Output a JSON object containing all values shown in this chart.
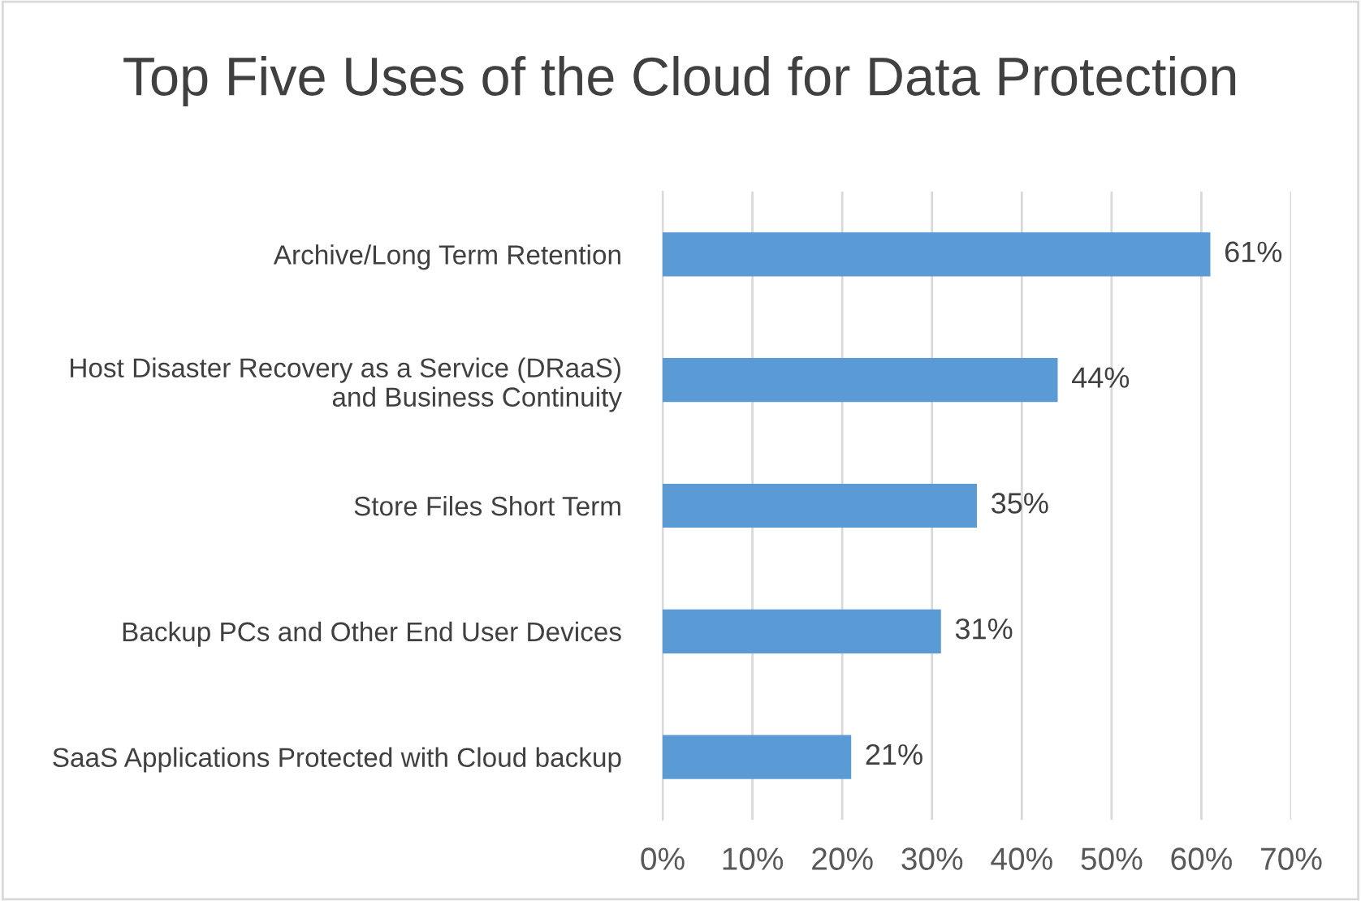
{
  "chart_data": {
    "type": "bar",
    "orientation": "horizontal",
    "title": "Top Five Uses of the Cloud for Data Protection",
    "categories": [
      "Archive/Long Term Retention",
      "Host Disaster Recovery as a Service (DRaaS)\nand Business Continuity",
      "Store Files Short Term",
      "Backup PCs and Other End User Devices",
      "SaaS Applications Protected with Cloud backup"
    ],
    "values": [
      61,
      44,
      35,
      31,
      21
    ],
    "value_labels": [
      "61%",
      "44%",
      "35%",
      "31%",
      "21%"
    ],
    "color": "#5b9bd5",
    "xlim": [
      0,
      70
    ],
    "xticks": [
      {
        "value": 0,
        "label": "0%"
      },
      {
        "value": 10,
        "label": "10%"
      },
      {
        "value": 20,
        "label": "20%"
      },
      {
        "value": 30,
        "label": "30%"
      },
      {
        "value": 40,
        "label": "40%"
      },
      {
        "value": 50,
        "label": "50%"
      },
      {
        "value": 60,
        "label": "60%"
      },
      {
        "value": 70,
        "label": "70%"
      }
    ],
    "grid": "x",
    "legend": false
  }
}
